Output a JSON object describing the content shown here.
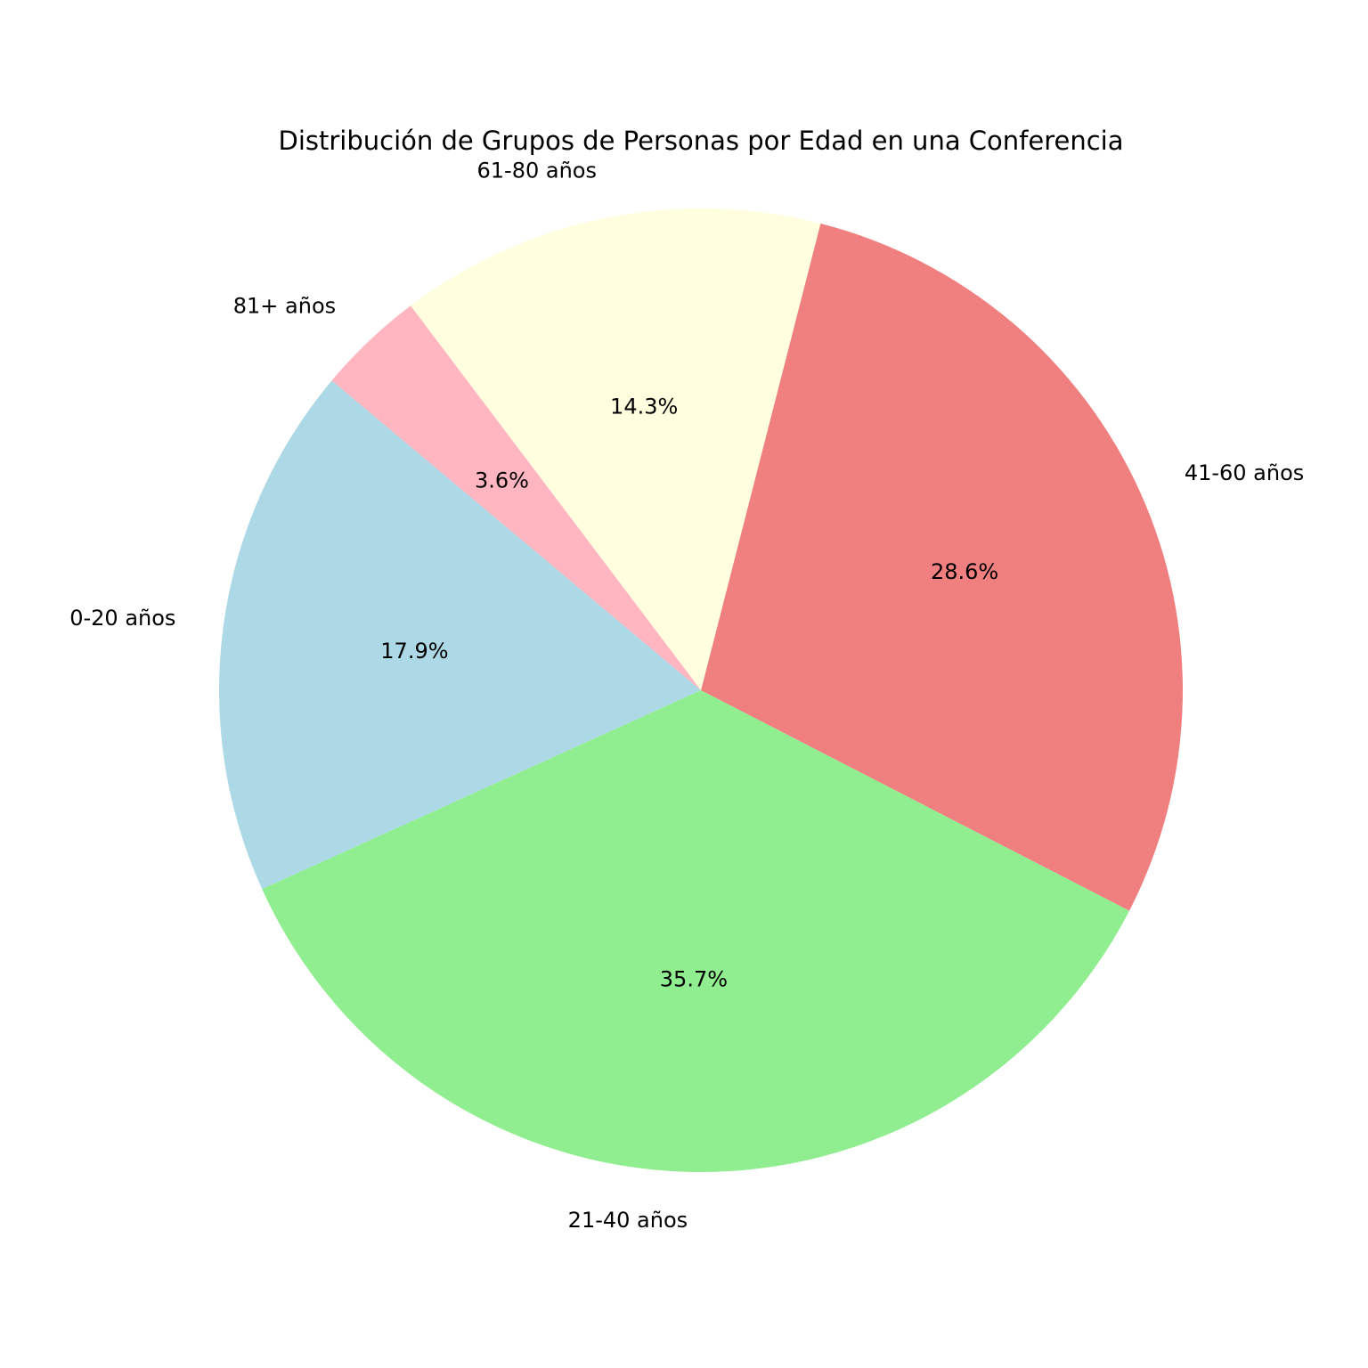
{
  "chart_data": {
    "type": "pie",
    "title": "Distribución de Grupos de Personas por Edad en una Conferencia",
    "start_angle_deg": 140,
    "direction": "counterclockwise",
    "slices": [
      {
        "label": "0-20 años",
        "percent": 17.9,
        "percent_label": "17.9%",
        "color": "#add8e6"
      },
      {
        "label": "21-40 años",
        "percent": 35.7,
        "percent_label": "35.7%",
        "color": "#90ee90"
      },
      {
        "label": "41-60 años",
        "percent": 28.6,
        "percent_label": "28.6%",
        "color": "#f08080"
      },
      {
        "label": "61-80 años",
        "percent": 14.3,
        "percent_label": "14.3%",
        "color": "#ffffe0"
      },
      {
        "label": "81+ años",
        "percent": 3.6,
        "percent_label": "3.6%",
        "color": "#ffb6c1"
      }
    ]
  }
}
